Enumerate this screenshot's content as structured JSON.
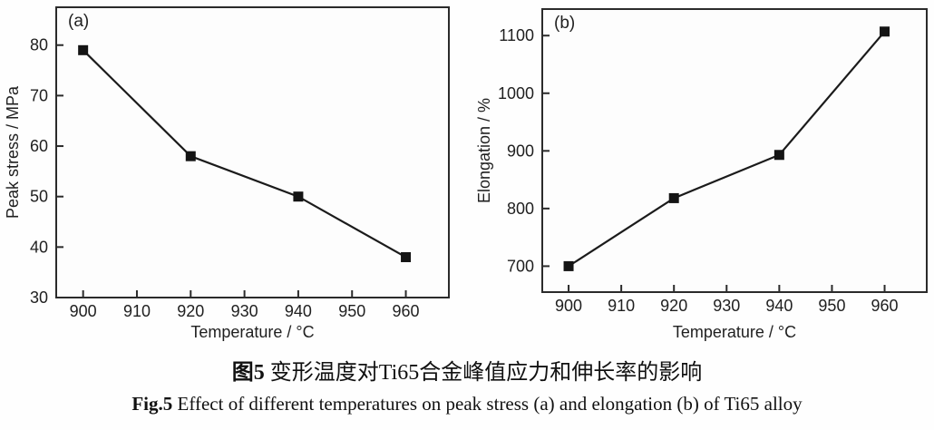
{
  "figure": {
    "caption_zh_prefix": "图5",
    "caption_zh_text": " 变形温度对Ti65合金峰值应力和伸长率的影响",
    "caption_en_prefix": "Fig.5",
    "caption_en_text": " Effect of different temperatures on peak stress (a) and elongation (b) of Ti65 alloy"
  },
  "colors": {
    "line": "#1b1b1b",
    "marker": "#141414",
    "axis": "#2b2b2b",
    "text": "#1f1f1f",
    "background": "#fefefe",
    "plot_background": "#fdfdfd"
  },
  "chart_data": [
    {
      "type": "line",
      "panel_label": "(a)",
      "xlabel": "Temperature / °C",
      "ylabel": "Peak stress / MPa",
      "x": [
        900,
        920,
        940,
        960
      ],
      "series": [
        {
          "name": "Peak stress",
          "values": [
            79,
            58,
            50,
            38
          ]
        }
      ],
      "xlim": [
        895,
        968
      ],
      "ylim": [
        30,
        87.5
      ],
      "xticks": [
        900,
        910,
        920,
        930,
        940,
        950,
        960
      ],
      "yticks": [
        30,
        40,
        50,
        60,
        70,
        80
      ],
      "marker": "filled-square",
      "grid": false,
      "legend": "none"
    },
    {
      "type": "line",
      "panel_label": "(b)",
      "xlabel": "Temperature / °C",
      "ylabel": "Elongation / %",
      "x": [
        900,
        920,
        940,
        960
      ],
      "series": [
        {
          "name": "Elongation",
          "values": [
            700,
            818,
            893,
            1107
          ]
        }
      ],
      "xlim": [
        895,
        968
      ],
      "ylim": [
        655,
        1146
      ],
      "xticks": [
        900,
        910,
        920,
        930,
        940,
        950,
        960
      ],
      "yticks": [
        700,
        800,
        900,
        1000,
        1100
      ],
      "marker": "filled-square",
      "grid": false,
      "legend": "none"
    }
  ]
}
